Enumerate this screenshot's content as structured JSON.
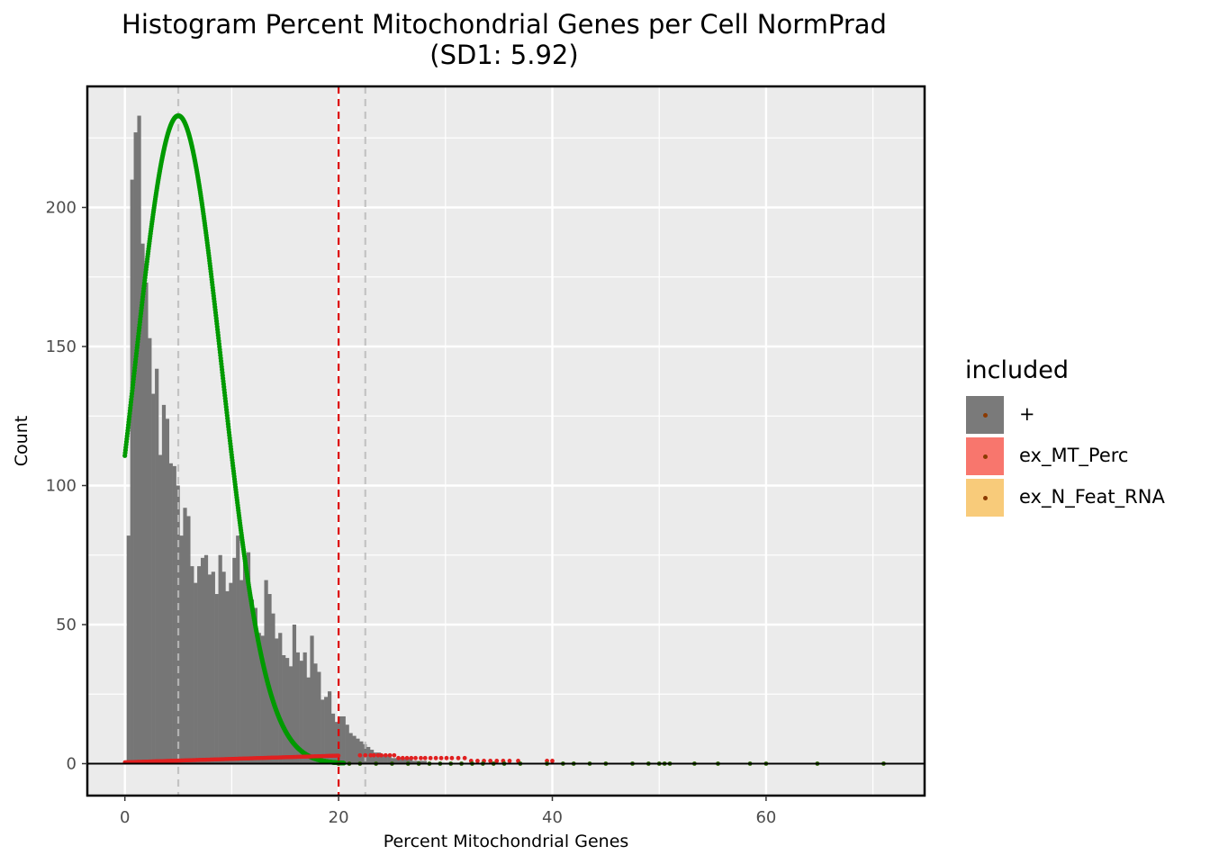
{
  "chart_data": {
    "type": "bar",
    "title_line1": "Histogram Percent Mitochondrial Genes per Cell NormPrad",
    "title_line2": "(SD1: 5.92)",
    "xlabel": "Percent Mitochondrial Genes",
    "ylabel": "Count",
    "xlim": [
      -3.5,
      75
    ],
    "ylim": [
      -11.5,
      245
    ],
    "x_ticks": [
      0,
      20,
      40,
      60
    ],
    "y_ticks": [
      0,
      50,
      100,
      150,
      200
    ],
    "grid": true,
    "vlines": [
      {
        "x": 5.0,
        "color": "#bdbdbd",
        "style": "dashed"
      },
      {
        "x": 20.0,
        "color": "#dd0000",
        "style": "dashed"
      },
      {
        "x": 22.5,
        "color": "#bdbdbd",
        "style": "dashed"
      }
    ],
    "histogram": {
      "bin_width": 0.33,
      "bins_start": 0.17,
      "color": "#767676",
      "counts": [
        82,
        210,
        227,
        233,
        187,
        173,
        153,
        133,
        142,
        111,
        129,
        124,
        108,
        107,
        100,
        82,
        92,
        89,
        71,
        65,
        71,
        74,
        75,
        68,
        69,
        61,
        75,
        69,
        62,
        65,
        74,
        82,
        66,
        73,
        76,
        59,
        56,
        47,
        46,
        66,
        61,
        54,
        45,
        47,
        39,
        38,
        35,
        50,
        40,
        37,
        40,
        31,
        46,
        36,
        33,
        23,
        24,
        26,
        18,
        15,
        17,
        17,
        14,
        11,
        10,
        9,
        8,
        7,
        6,
        5,
        4,
        4,
        3,
        3,
        3,
        2,
        2,
        2,
        2,
        2,
        2,
        1,
        1,
        1,
        1
      ]
    },
    "legend": {
      "title": "included",
      "position": "right",
      "items": [
        {
          "label": "+",
          "color": "#7a7a7a"
        },
        {
          "label": "ex_MT_Perc",
          "color": "#f8766d"
        },
        {
          "label": "ex_N_Feat_RNA",
          "color": "#f8cb7a"
        }
      ]
    },
    "series": [
      {
        "name": "normal fit",
        "type": "curve",
        "color": "#009a00",
        "peak_x": 5.0,
        "peak_y": 233,
        "sd": 4.1,
        "x_range": [
          0,
          72
        ]
      },
      {
        "name": "excluded points",
        "type": "scatter",
        "color": "#e02020",
        "x": [
          22.0,
          22.5,
          23.0,
          23.3,
          23.7,
          24.0,
          24.4,
          24.8,
          25.2,
          25.6,
          26.0,
          26.4,
          26.8,
          27.2,
          27.7,
          28.1,
          28.6,
          29.1,
          29.6,
          30.1,
          30.6,
          31.2,
          31.8,
          32.4,
          33.0,
          33.6,
          34.2,
          34.8,
          35.4,
          36.0,
          36.8,
          39.5,
          40.0
        ],
        "y": [
          3,
          3,
          3,
          3,
          3,
          3,
          3,
          3,
          3,
          2,
          2,
          2,
          2,
          2,
          2,
          2,
          2,
          2,
          2,
          2,
          2,
          2,
          2,
          1,
          1,
          1,
          1,
          1,
          1,
          1,
          1,
          1,
          1
        ]
      },
      {
        "name": "baseline points",
        "type": "scatter",
        "color": "#2a6a00",
        "x": [
          20.0,
          21.0,
          22.0,
          23.5,
          25.0,
          26.5,
          27.5,
          28.5,
          29.5,
          30.5,
          31.5,
          32.5,
          33.5,
          34.5,
          35.5,
          37.0,
          39.5,
          41.0,
          42.0,
          43.5,
          45.0,
          47.5,
          49.0,
          50.0,
          50.5,
          51.0,
          53.3,
          55.5,
          58.5,
          60.0,
          64.8,
          71.0
        ],
        "y": [
          0,
          0,
          0,
          0,
          0,
          0,
          0,
          0,
          0,
          0,
          0,
          0,
          0,
          0,
          0,
          0,
          0,
          0,
          0,
          0,
          0,
          0,
          0,
          0,
          0,
          0,
          0,
          0,
          0,
          0,
          0,
          0
        ]
      }
    ]
  }
}
